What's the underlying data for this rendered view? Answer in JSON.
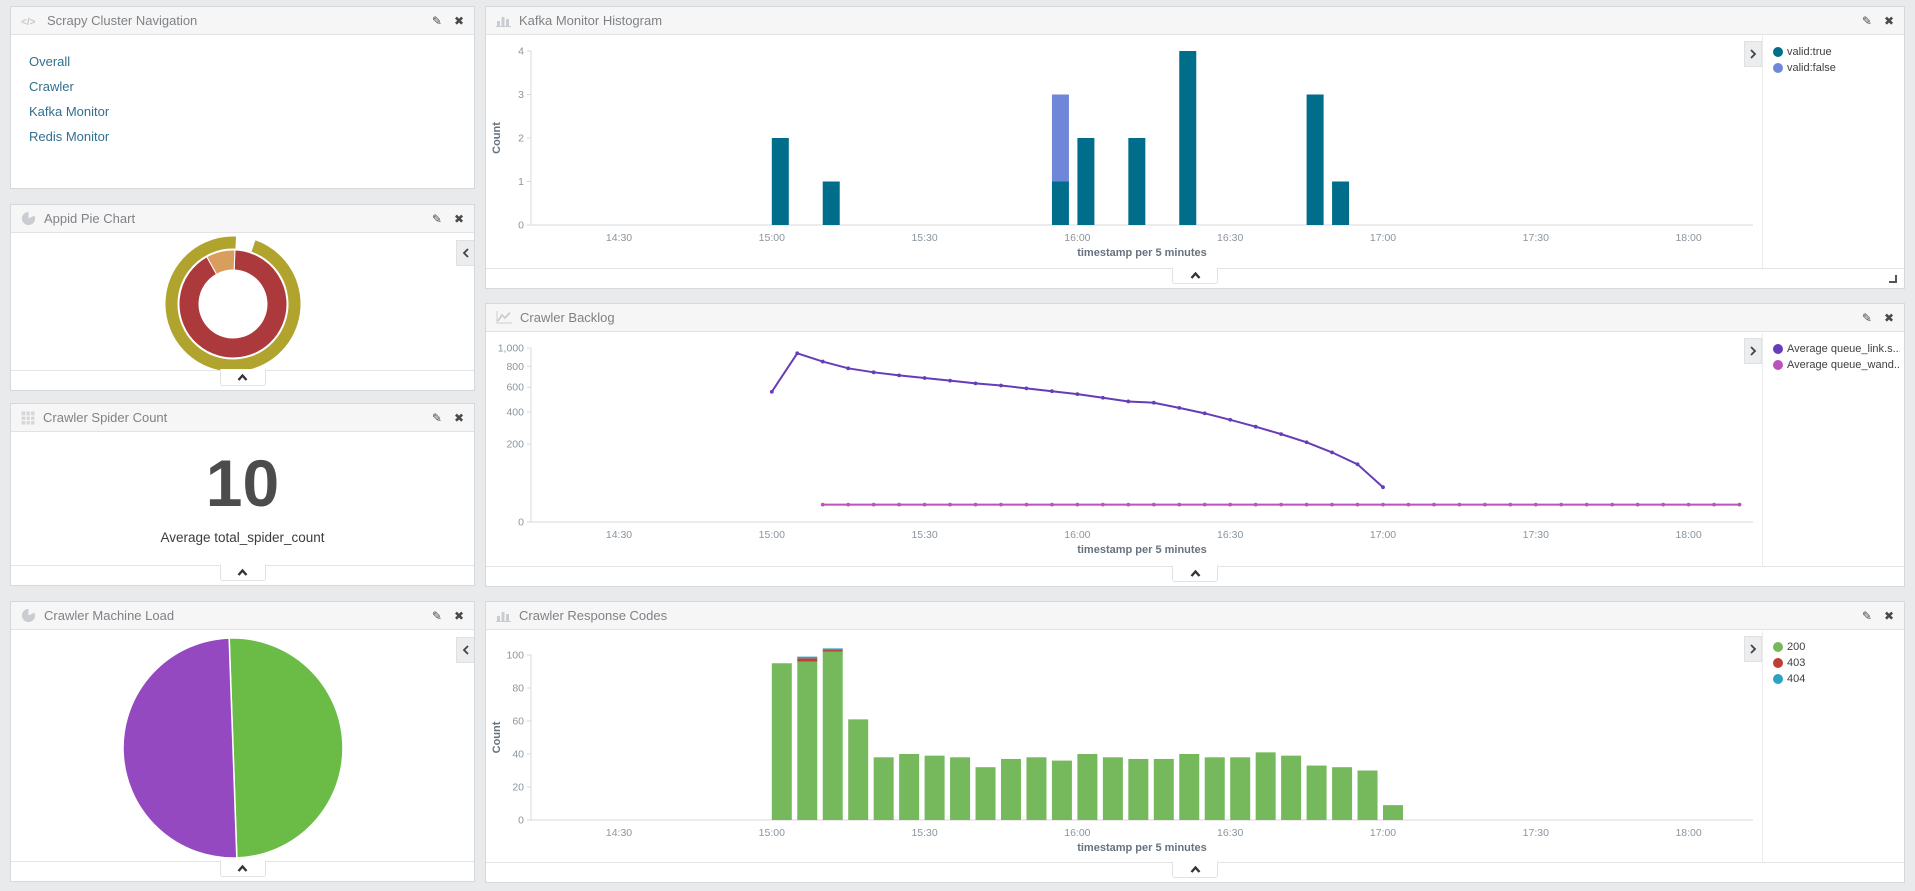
{
  "panels": {
    "navigation": {
      "title": "Scrapy Cluster Navigation",
      "links": [
        "Overall",
        "Crawler",
        "Kafka Monitor",
        "Redis Monitor"
      ],
      "link_color": "#31708f"
    },
    "appid_pie": {
      "title": "Appid Pie Chart"
    },
    "spider_count": {
      "title": "Crawler Spider Count"
    },
    "machine_load": {
      "title": "Crawler Machine Load"
    },
    "kafka_histogram": {
      "title": "Kafka Monitor Histogram"
    },
    "crawler_backlog": {
      "title": "Crawler Backlog"
    },
    "response_codes": {
      "title": "Crawler Response Codes"
    }
  },
  "chart_data": [
    {
      "id": "kafka_histogram",
      "type": "bar",
      "title": "Kafka Monitor Histogram",
      "xlabel": "timestamp per 5 minutes",
      "ylabel": "Count",
      "ylim": [
        0,
        4
      ],
      "y_ticks": [
        0,
        1,
        2,
        3,
        4
      ],
      "x_ticks": [
        "14:30",
        "15:00",
        "15:30",
        "16:00",
        "16:30",
        "17:00",
        "17:30",
        "18:00"
      ],
      "legend_position": "right",
      "series_meta": [
        {
          "name": "valid:true",
          "color": "#006e8a"
        },
        {
          "name": "valid:false",
          "color": "#6f87d8"
        }
      ],
      "buckets": [
        {
          "time": "15:00",
          "valid_true": 2,
          "valid_false": 0
        },
        {
          "time": "15:10",
          "valid_true": 1,
          "valid_false": 0
        },
        {
          "time": "15:55",
          "valid_true": 1,
          "valid_false": 2
        },
        {
          "time": "16:00",
          "valid_true": 2,
          "valid_false": 0
        },
        {
          "time": "16:10",
          "valid_true": 2,
          "valid_false": 0
        },
        {
          "time": "16:20",
          "valid_true": 4,
          "valid_false": 0
        },
        {
          "time": "16:45",
          "valid_true": 3,
          "valid_false": 0
        },
        {
          "time": "16:50",
          "valid_true": 1,
          "valid_false": 0
        }
      ]
    },
    {
      "id": "appid_pie",
      "type": "pie",
      "title": "Appid Pie Chart",
      "style": "donut",
      "inner_ring": [
        {
          "label": "segment-red",
          "pct": 91.4,
          "color": "#ac3a3c",
          "start_deg": 2,
          "end_deg": 331
        },
        {
          "label": "segment-orange",
          "pct": 8.6,
          "color": "#d99e5e",
          "start_deg": 331,
          "end_deg": 362
        }
      ],
      "outer_ring": [
        {
          "label": "segment-olive",
          "pct": 95.6,
          "color": "#b0a42f",
          "start_deg": 19,
          "end_deg": 363
        }
      ]
    },
    {
      "id": "spider_count",
      "type": "metric",
      "value": 10,
      "label": "Average total_spider_count"
    },
    {
      "id": "crawler_backlog",
      "type": "line",
      "title": "Crawler Backlog",
      "xlabel": "timestamp per 5 minutes",
      "y_scale": "sqrt",
      "ylim": [
        0,
        1000
      ],
      "y_ticks": [
        0,
        200,
        400,
        600,
        800,
        1000
      ],
      "x_ticks": [
        "14:30",
        "15:00",
        "15:30",
        "16:00",
        "16:30",
        "17:00",
        "17:30",
        "18:00"
      ],
      "legend_position": "right",
      "series": [
        {
          "name": "Average queue_link.s...",
          "color": "#663db8",
          "start": "15:00",
          "step_minutes": 5,
          "values": [
            560,
            940,
            850,
            780,
            740,
            710,
            685,
            660,
            635,
            615,
            590,
            565,
            540,
            510,
            480,
            470,
            430,
            390,
            345,
            300,
            255,
            210,
            160,
            110,
            40
          ]
        },
        {
          "name": "Average queue_wand...",
          "color": "#bc52bc",
          "start": "15:10",
          "end": "18:10",
          "step_minutes": 5,
          "constant_value": 10
        }
      ]
    },
    {
      "id": "machine_load",
      "type": "pie",
      "title": "Crawler Machine Load",
      "slices": [
        {
          "label": "slice-green",
          "pct": 50,
          "color": "#6abc47",
          "start_deg": -2,
          "end_deg": 178
        },
        {
          "label": "slice-purple",
          "pct": 50,
          "color": "#9449c0",
          "start_deg": 178,
          "end_deg": 358
        }
      ]
    },
    {
      "id": "response_codes",
      "type": "bar",
      "title": "Crawler Response Codes",
      "xlabel": "timestamp per 5 minutes",
      "ylabel": "Count",
      "ylim": [
        0,
        105
      ],
      "y_ticks": [
        0,
        20,
        40,
        60,
        80,
        100
      ],
      "x_ticks": [
        "14:30",
        "15:00",
        "15:30",
        "16:00",
        "16:30",
        "17:00",
        "17:30",
        "18:00"
      ],
      "legend_position": "right",
      "categories": [
        "15:00",
        "15:05",
        "15:10",
        "15:15",
        "15:20",
        "15:25",
        "15:30",
        "15:35",
        "15:40",
        "15:45",
        "15:50",
        "15:55",
        "16:00",
        "16:05",
        "16:10",
        "16:15",
        "16:20",
        "16:25",
        "16:30",
        "16:35",
        "16:40",
        "16:45",
        "16:50",
        "16:55",
        "17:00"
      ],
      "series": [
        {
          "name": "200",
          "color": "#76b85c",
          "values": [
            95,
            96,
            102,
            61,
            38,
            40,
            39,
            38,
            32,
            37,
            38,
            36,
            40,
            38,
            37,
            37,
            40,
            38,
            38,
            41,
            39,
            33,
            32,
            30,
            9
          ]
        },
        {
          "name": "403",
          "color": "#c03d33",
          "values": [
            0,
            2,
            1,
            0,
            0,
            0,
            0,
            0,
            0,
            0,
            0,
            0,
            0,
            0,
            0,
            0,
            0,
            0,
            0,
            0,
            0,
            0,
            0,
            0,
            0
          ]
        },
        {
          "name": "404",
          "color": "#2aa3c0",
          "values": [
            0,
            1,
            1,
            0,
            0,
            0,
            0,
            0,
            0,
            0,
            0,
            0,
            0,
            0,
            0,
            0,
            0,
            0,
            0,
            0,
            0,
            0,
            0,
            0,
            0
          ]
        }
      ]
    }
  ]
}
